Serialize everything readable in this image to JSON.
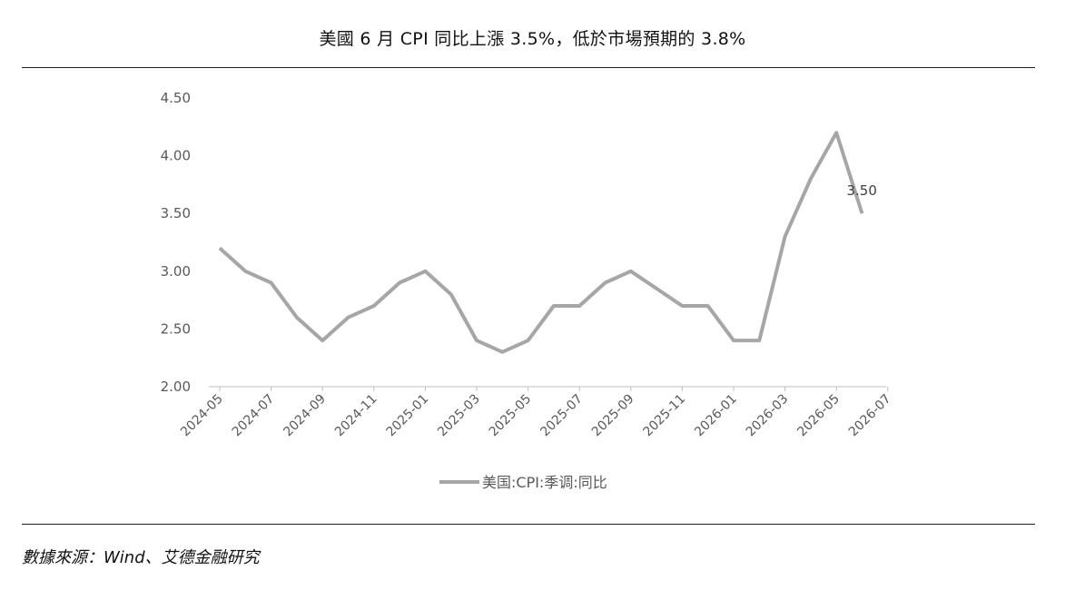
{
  "title": "美國 6 月 CPI 同比上漲 3.5%，低於市場預期的 3.8%",
  "source": "數據來源：Wind、艾德金融研究",
  "chart_data": {
    "type": "line",
    "x": [
      "2024-05",
      "2024-06",
      "2024-07",
      "2024-08",
      "2024-09",
      "2024-10",
      "2024-11",
      "2024-12",
      "2025-01",
      "2025-02",
      "2025-03",
      "2025-04",
      "2025-05",
      "2025-06",
      "2025-07",
      "2025-08",
      "2025-09",
      "2025-10",
      "2025-11",
      "2025-12",
      "2026-01",
      "2026-02",
      "2026-03",
      "2026-04",
      "2026-05",
      "2026-06"
    ],
    "x_tick_labels": [
      "2024-05",
      "2024-07",
      "2024-09",
      "2024-11",
      "2025-01",
      "2025-03",
      "2025-05",
      "2025-07",
      "2025-09",
      "2025-11",
      "2026-01",
      "2026-03",
      "2026-05",
      "2026-07"
    ],
    "series": [
      {
        "name": "美国:CPI:季调:同比",
        "values": [
          3.2,
          3.0,
          2.9,
          2.6,
          2.4,
          2.6,
          2.7,
          2.9,
          3.0,
          2.8,
          2.4,
          2.3,
          2.4,
          2.7,
          2.7,
          2.9,
          3.0,
          2.85,
          2.7,
          2.7,
          2.4,
          2.4,
          3.3,
          3.8,
          4.2,
          3.5
        ],
        "color": "#a6a6a6"
      }
    ],
    "y_ticks": [
      "2.00",
      "2.50",
      "3.00",
      "3.50",
      "4.00",
      "4.50"
    ],
    "ylim": [
      2.0,
      4.5
    ],
    "annotation": "3.50",
    "legend_position": "bottom",
    "grid": false,
    "title": "",
    "xlabel": "",
    "ylabel": ""
  }
}
